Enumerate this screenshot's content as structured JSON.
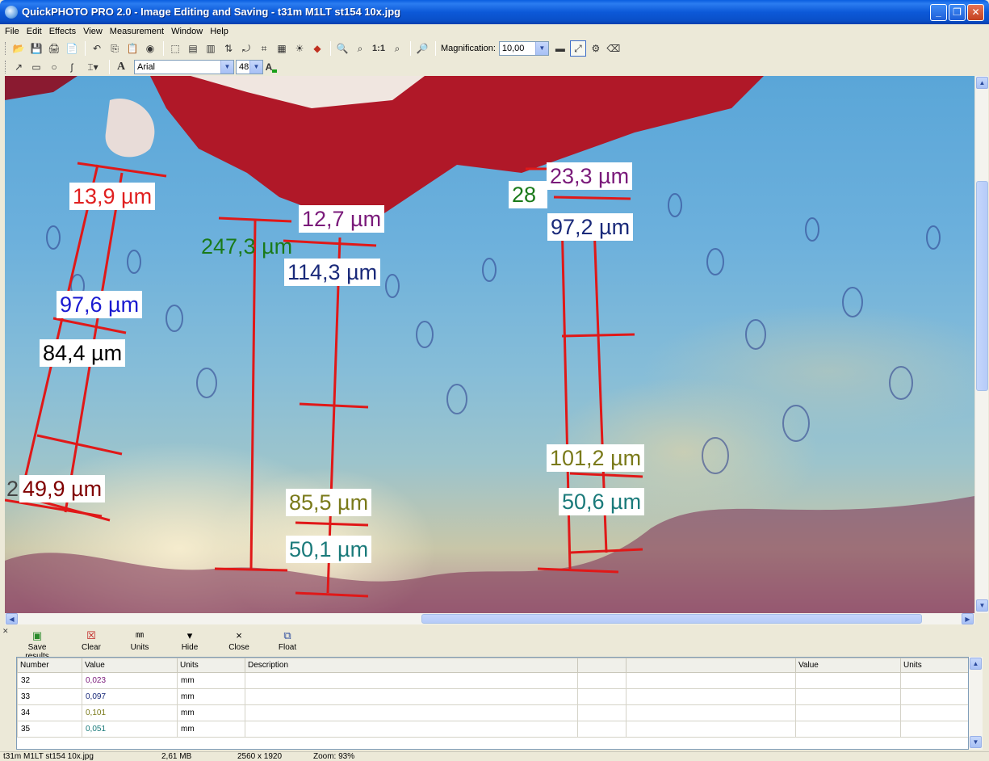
{
  "window": {
    "title": "QuickPHOTO PRO 2.0 - Image Editing and Saving - t31m M1LT st154 10x.jpg",
    "minimize_glyph": "_",
    "restore_glyph": "❐",
    "close_glyph": "✕"
  },
  "menu": [
    "File",
    "Edit",
    "Effects",
    "View",
    "Measurement",
    "Window",
    "Help"
  ],
  "toolbar": {
    "magnification_label": "Magnification:",
    "magnification_value": "10,00",
    "zoom_one_label": "1:1",
    "icons": [
      "open-icon",
      "save-icon",
      "print-icon",
      "export-icon",
      "undo-icon",
      "copy-icon",
      "paste-icon",
      "camera-icon",
      "select-rect-icon",
      "zoom-in-icon",
      "zoom-out-icon",
      "measure-icon",
      "eraser-icon"
    ]
  },
  "drawbar": {
    "font_name": "Arial",
    "font_size": "48",
    "text_tool_label": "A"
  },
  "measurements": [
    {
      "text": "13,9 µm",
      "color": "#e02020"
    },
    {
      "text": "12,7 µm",
      "color": "#7a1a7a"
    },
    {
      "text": "247,3 µm",
      "color": "#1a7a1a"
    },
    {
      "text": "114,3 µm",
      "color": "#1a2a7a"
    },
    {
      "text": "97,6 µm",
      "color": "#1a1ad0"
    },
    {
      "text": "84,4 µm",
      "color": "#000000"
    },
    {
      "text": "2",
      "color": "#444444"
    },
    {
      "text": "49,9 µm",
      "color": "#800000"
    },
    {
      "text": "85,5 µm",
      "color": "#7a7a1a"
    },
    {
      "text": "50,1 µm",
      "color": "#1a7a7a"
    },
    {
      "text": "23,3 µm",
      "color": "#7a1a7a"
    },
    {
      "text": "28",
      "color": "#1a7a1a"
    },
    {
      "text": "97,2 µm",
      "color": "#1a2a7a"
    },
    {
      "text": "101,2 µm",
      "color": "#7a7a1a"
    },
    {
      "text": "50,6 µm",
      "color": "#1a7a7a"
    }
  ],
  "results_toolbar": [
    "Save results",
    "Clear",
    "Units",
    "Hide",
    "Close",
    "Float"
  ],
  "results_table": {
    "headers": [
      "Number",
      "Value",
      "Units",
      "Description",
      "",
      "",
      "Value",
      "Units"
    ],
    "rows": [
      {
        "number": "32",
        "value": "0,023",
        "units": "mm",
        "color": "#7a1a7a"
      },
      {
        "number": "33",
        "value": "0,097",
        "units": "mm",
        "color": "#1a2a7a"
      },
      {
        "number": "34",
        "value": "0,101",
        "units": "mm",
        "color": "#7a7a1a"
      },
      {
        "number": "35",
        "value": "0,051",
        "units": "mm",
        "color": "#1a7a7a"
      }
    ]
  },
  "status": {
    "file": "t31m M1LT st154 10x.jpg",
    "size": "2,61 MB",
    "dimensions": "2560 x 1920",
    "zoom": "Zoom: 93%"
  }
}
